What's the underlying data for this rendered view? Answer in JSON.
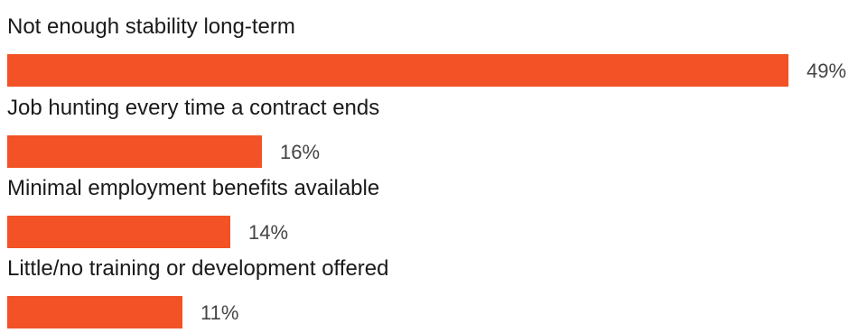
{
  "chart_data": {
    "type": "bar",
    "orientation": "horizontal",
    "categories": [
      "Not enough stability long-term",
      "Job hunting every time a contract ends",
      "Minimal employment benefits available",
      "Little/no training or development offered"
    ],
    "values": [
      49,
      16,
      14,
      11
    ],
    "value_labels": [
      "49%",
      "16%",
      "14%",
      "11%"
    ],
    "unit": "%",
    "bar_color": "#F25225",
    "legend": "none",
    "grid": false,
    "axes_visible": false
  }
}
